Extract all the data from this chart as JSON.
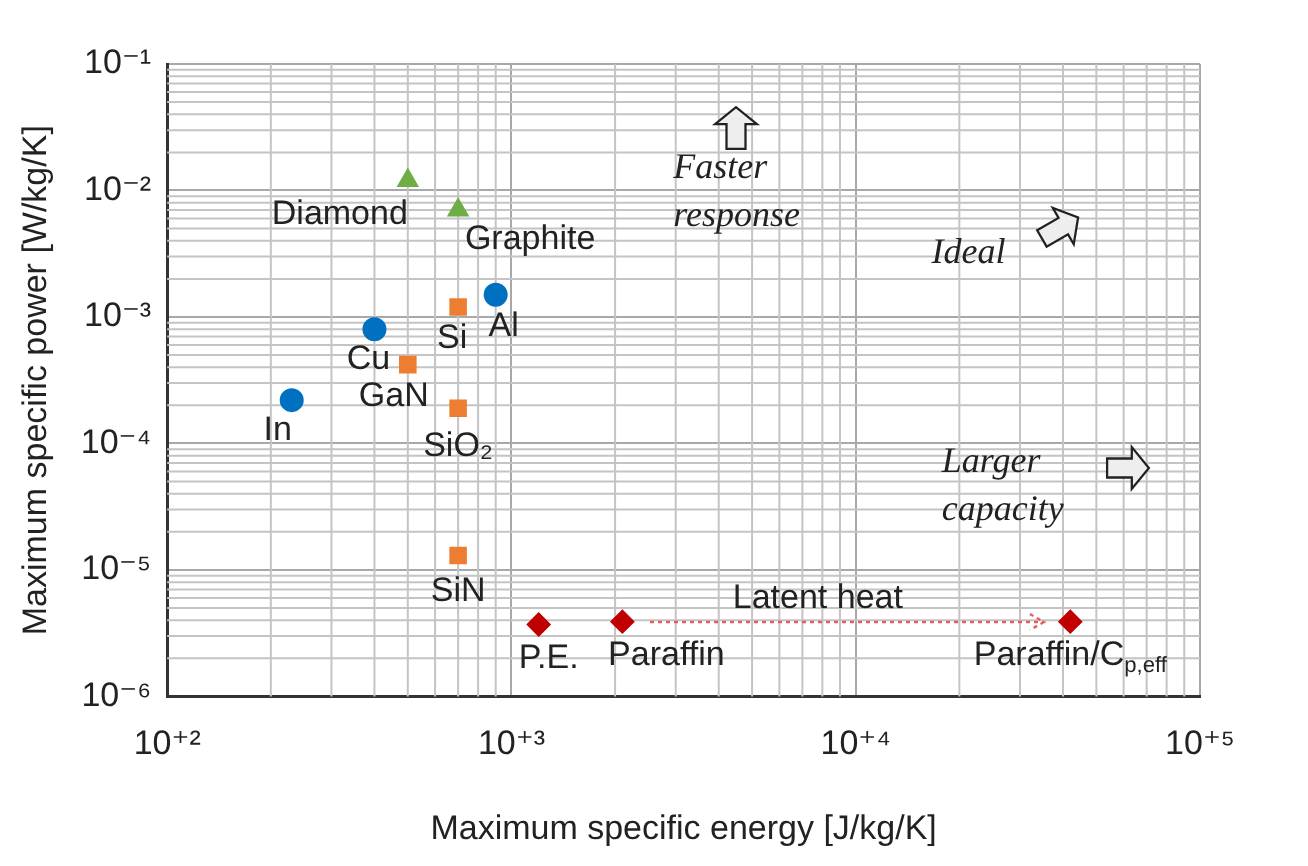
{
  "chart_data": {
    "type": "scatter",
    "xlabel": "Maximum specific energy [J/kg/K]",
    "ylabel": "Maximum specific power [W/kg/K]",
    "log": "xy",
    "grid": true,
    "legend": false,
    "xlim": [
      100,
      100000
    ],
    "xticks": [
      {
        "value": 100,
        "label": "10⁺²"
      },
      {
        "value": 1000,
        "label": "10⁺³"
      },
      {
        "value": 10000,
        "label": "10⁺⁴"
      },
      {
        "value": 100000,
        "label": "10⁺⁵"
      }
    ],
    "ylim": [
      1e-06,
      0.1
    ],
    "yticks": [
      {
        "value": 1e-06,
        "label": "10⁻⁶"
      },
      {
        "value": 1e-05,
        "label": "10⁻⁵"
      },
      {
        "value": 0.0001,
        "label": "10⁻⁴"
      },
      {
        "value": 0.001,
        "label": "10⁻³"
      },
      {
        "value": 0.01,
        "label": "10⁻²"
      },
      {
        "value": 0.1,
        "label": "10⁻¹"
      }
    ],
    "series": [
      {
        "color": "#0070c0",
        "marker": "circle",
        "x": [
          400,
          900,
          230
        ],
        "values": [
          0.0008,
          0.0015,
          0.00022
        ]
      },
      {
        "color": "#ed7d31",
        "marker": "square",
        "x": [
          700,
          500,
          700,
          700
        ],
        "values": [
          0.0012,
          0.00042,
          0.00019,
          1.3e-05
        ]
      },
      {
        "color": "#70ad47",
        "marker": "triangle",
        "x": [
          500,
          700
        ],
        "values": [
          0.012,
          0.007
        ]
      },
      {
        "color": "#c00000",
        "marker": "diamond",
        "x": [
          1200,
          2100,
          42000
        ],
        "values": [
          3.7e-06,
          3.9e-06,
          3.9e-06
        ]
      }
    ],
    "annotations": [
      {
        "text": "Cu",
        "x": 400,
        "y": 0.0008
      },
      {
        "text": "Al",
        "x": 900,
        "y": 0.0015
      },
      {
        "text": "In",
        "x": 230,
        "y": 0.00022
      },
      {
        "text": "Si",
        "x": 700,
        "y": 0.0012
      },
      {
        "text": "GaN",
        "x": 500,
        "y": 0.00042
      },
      {
        "text": "SiO₂",
        "x": 700,
        "y": 0.00019
      },
      {
        "text": "SiN",
        "x": 700,
        "y": 1.3e-05
      },
      {
        "text": "Diamond",
        "x": 500,
        "y": 0.012
      },
      {
        "text": "Graphite",
        "x": 700,
        "y": 0.007
      },
      {
        "text": "P.E.",
        "x": 1200,
        "y": 3.7e-06
      },
      {
        "text": "Paraffin",
        "x": 2100,
        "y": 3.9e-06
      },
      {
        "text": "Paraffin/C$_{p,eff}$",
        "x": 42000,
        "y": 3.9e-06
      },
      "Latent heat",
      "Faster response",
      "Ideal",
      "Larger capacity"
    ]
  }
}
